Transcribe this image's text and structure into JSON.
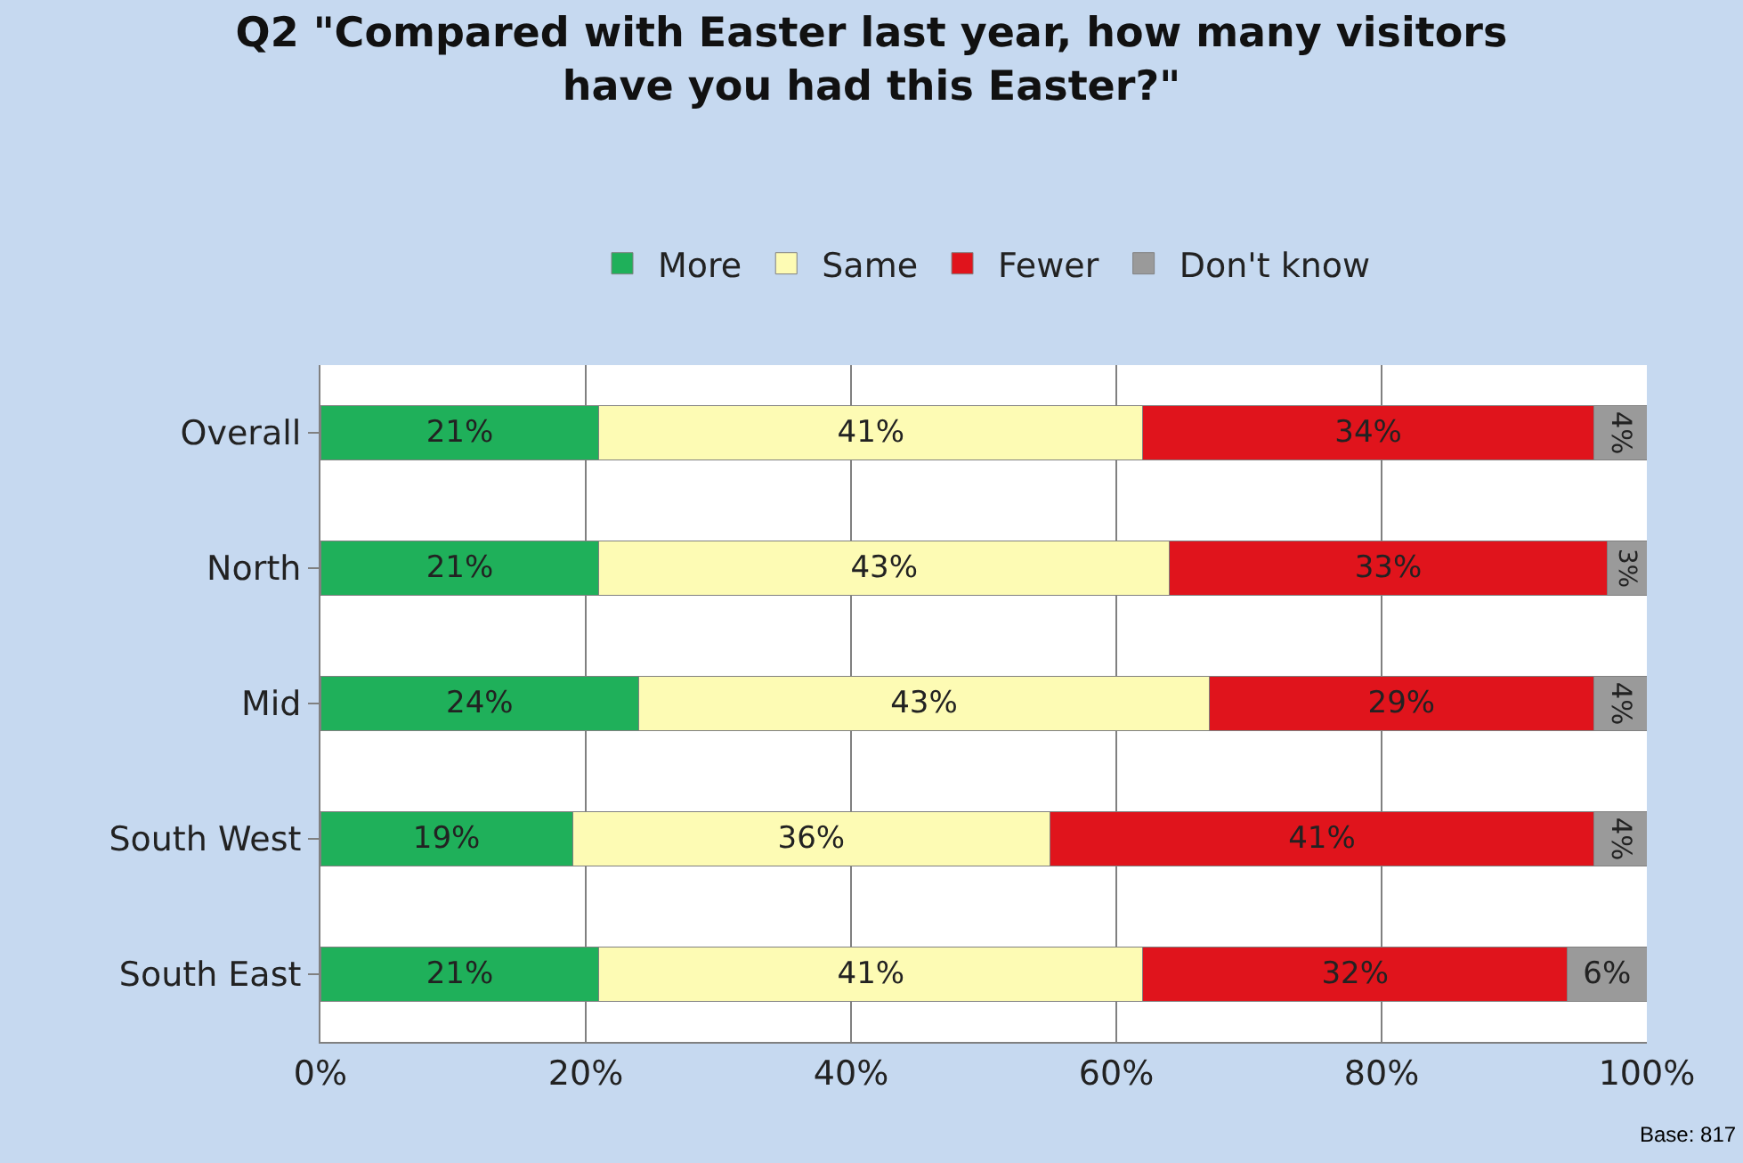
{
  "chart_data": {
    "type": "bar",
    "orientation": "horizontal",
    "stacked": true,
    "title": "Q2 \"Compared with Easter last year, how many visitors\nhave you had this Easter?\"",
    "categories": [
      "Overall",
      "North",
      "Mid",
      "South West",
      "South East"
    ],
    "series": [
      {
        "name": "More",
        "color": "#1fb05a",
        "values": [
          21,
          21,
          24,
          19,
          21
        ],
        "value_labels": [
          "21%",
          "21%",
          "24%",
          "19%",
          "21%"
        ]
      },
      {
        "name": "Same",
        "color": "#fdfbb4",
        "values": [
          41,
          43,
          43,
          36,
          41
        ],
        "value_labels": [
          "41%",
          "43%",
          "43%",
          "36%",
          "41%"
        ]
      },
      {
        "name": "Fewer",
        "color": "#e0141c",
        "values": [
          34,
          33,
          29,
          41,
          32
        ],
        "value_labels": [
          "34%",
          "33%",
          "29%",
          "41%",
          "32%"
        ]
      },
      {
        "name": "Don't know",
        "color": "#9a9a9a",
        "values": [
          4,
          3,
          4,
          4,
          6
        ],
        "value_labels": [
          "4%",
          "3%",
          "4%",
          "4%",
          "6%"
        ]
      }
    ],
    "xlim": [
      0,
      100
    ],
    "xticks": [
      {
        "value": 0,
        "label": "0%"
      },
      {
        "value": 20,
        "label": "20%"
      },
      {
        "value": 40,
        "label": "40%"
      },
      {
        "value": 60,
        "label": "60%"
      },
      {
        "value": 80,
        "label": "80%"
      },
      {
        "value": 100,
        "label": "100%"
      }
    ],
    "grid": "x",
    "legend": "top",
    "annotations": [
      "Base: 817"
    ]
  }
}
